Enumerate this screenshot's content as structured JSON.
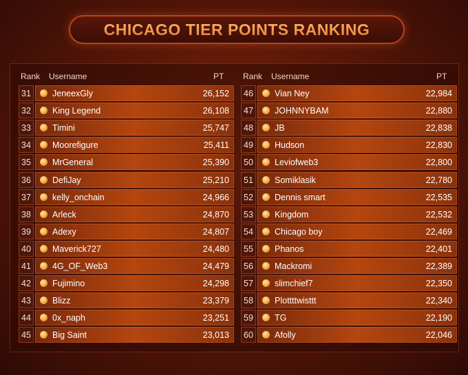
{
  "title": "CHICAGO TIER POINTS RANKING",
  "columns": [
    {
      "headers": [
        "Rank",
        "Username",
        "PT"
      ],
      "rows": [
        [
          31,
          "JeneexGly",
          "26,152"
        ],
        [
          32,
          "King Legend",
          "26,108"
        ],
        [
          33,
          "Timini",
          "25,747"
        ],
        [
          34,
          "Moorefigure",
          "25,411"
        ],
        [
          35,
          "MrGeneral",
          "25,390"
        ],
        [
          36,
          "DefiJay",
          "25,210"
        ],
        [
          37,
          "kelly_onchain",
          "24,966"
        ],
        [
          38,
          "Arleck",
          "24,870"
        ],
        [
          39,
          "Adexy",
          "24,807"
        ],
        [
          40,
          "Maverick727",
          "24,480"
        ],
        [
          41,
          "4G_OF_Web3",
          "24,479"
        ],
        [
          42,
          "Fujimino",
          "24,298"
        ],
        [
          43,
          "Blizz",
          "23,379"
        ],
        [
          44,
          "0x_naph",
          "23,251"
        ],
        [
          45,
          "Big Saint",
          "23,013"
        ]
      ]
    },
    {
      "headers": [
        "Rank",
        "Username",
        "PT"
      ],
      "rows": [
        [
          46,
          "Vian Ney",
          "22,984"
        ],
        [
          47,
          "JOHNNYBAM",
          "22,880"
        ],
        [
          48,
          "JB",
          "22,838"
        ],
        [
          49,
          "Hudson",
          "22,830"
        ],
        [
          50,
          "Leviofweb3",
          "22,800"
        ],
        [
          51,
          "Somiklasik",
          "22,780"
        ],
        [
          52,
          "Dennis smart",
          "22,535"
        ],
        [
          53,
          "Kingdom",
          "22,532"
        ],
        [
          54,
          "Chicago boy",
          "22,469"
        ],
        [
          55,
          "Phanos",
          "22,401"
        ],
        [
          56,
          "Mackromi",
          "22,389"
        ],
        [
          57,
          "slimchief7",
          "22,350"
        ],
        [
          58,
          "Plottttwisttt",
          "22,340"
        ],
        [
          59,
          "TG",
          "22,190"
        ],
        [
          60,
          "Afolly",
          "22,046"
        ]
      ]
    }
  ]
}
